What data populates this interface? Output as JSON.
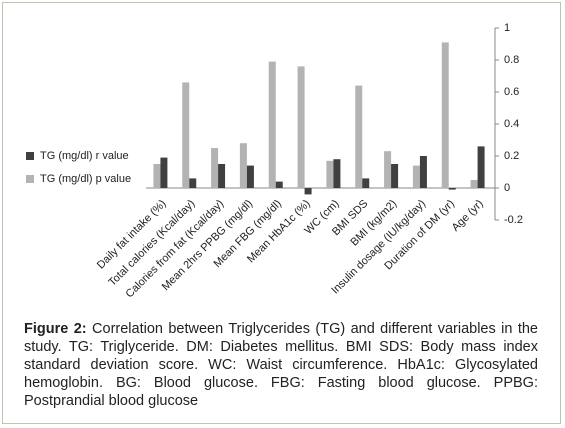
{
  "chart_data": {
    "type": "bar",
    "categories": [
      "Daily fat intake (%)",
      "Total calories (Kcal/day)",
      "Calories from fat (Kcal/day)",
      "Mean 2hrs PPBG (mg/dl)",
      "Mean FBG (mg/dl)",
      "Mean HbA1c (%)",
      "WC (cm)",
      "BMI SDS",
      "BMI (kg/m2)",
      "Insulin dosage (IU/kg/day)",
      "Duration of DM (yr)",
      "Age (yr)"
    ],
    "series": [
      {
        "name": "TG (mg/dl) r value",
        "color": "#404040",
        "values": [
          0.19,
          0.06,
          0.15,
          0.14,
          0.04,
          -0.04,
          0.18,
          0.06,
          0.15,
          0.2,
          -0.01,
          0.26
        ]
      },
      {
        "name": "TG (mg/dl) p value",
        "color": "#b3b3b3",
        "values": [
          0.15,
          0.66,
          0.25,
          0.28,
          0.79,
          0.76,
          0.17,
          0.64,
          0.23,
          0.14,
          0.91,
          0.05
        ]
      }
    ],
    "ylim": [
      -0.2,
      1
    ],
    "yticks": [
      1,
      0.8,
      0.6,
      0.4,
      0.2,
      0,
      -0.2
    ],
    "grid": false,
    "legend": "left",
    "caption_label": "Figure 2:",
    "caption": "Correlation between Triglycerides (TG) and different variables in the study. TG: Triglyceride. DM: Diabetes mellitus. BMI SDS: Body mass index standard deviation score. WC: Waist circumference. HbA1c: Glycosylated hemoglobin. BG: Blood glucose. FBG: Fasting blood glucose. PPBG: Postprandial blood glucose"
  }
}
